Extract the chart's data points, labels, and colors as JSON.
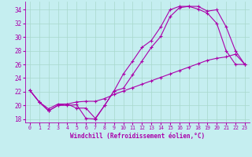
{
  "xlabel": "Windchill (Refroidissement éolien,°C)",
  "line_color": "#aa00aa",
  "bg_color": "#c5eef0",
  "grid_color": "#a8d8cc",
  "xlim_min": -0.5,
  "xlim_max": 23.5,
  "ylim_min": 17.5,
  "ylim_max": 35.2,
  "xticks": [
    0,
    1,
    2,
    3,
    4,
    5,
    6,
    7,
    8,
    9,
    10,
    11,
    12,
    13,
    14,
    15,
    16,
    17,
    18,
    19,
    20,
    21,
    22,
    23
  ],
  "yticks": [
    18,
    20,
    22,
    24,
    26,
    28,
    30,
    32,
    34
  ],
  "line1_x": [
    0,
    1,
    2,
    3,
    4,
    5,
    6,
    7,
    8,
    9,
    10,
    11,
    12,
    13,
    14,
    15,
    16,
    17,
    18,
    19,
    20,
    21,
    22,
    23
  ],
  "line1_y": [
    22.2,
    20.5,
    19.2,
    20.0,
    20.0,
    20.1,
    18.1,
    18.0,
    20.0,
    22.1,
    22.5,
    24.5,
    26.5,
    28.5,
    30.1,
    33.0,
    34.3,
    34.5,
    34.5,
    33.8,
    34.0,
    31.5,
    28.0,
    26.0
  ],
  "line2_x": [
    0,
    1,
    2,
    3,
    4,
    5,
    6,
    7,
    8,
    9,
    10,
    11,
    12,
    13,
    14,
    15,
    16,
    17,
    18,
    19,
    20,
    21,
    22,
    23
  ],
  "line2_y": [
    22.2,
    20.5,
    19.2,
    20.0,
    20.2,
    19.6,
    19.6,
    18.1,
    20.0,
    22.1,
    24.6,
    26.5,
    28.5,
    29.5,
    31.5,
    34.0,
    34.5,
    34.5,
    34.1,
    33.5,
    32.0,
    28.0,
    26.0,
    26.0
  ],
  "line3_x": [
    0,
    1,
    2,
    3,
    4,
    5,
    6,
    7,
    8,
    9,
    10,
    11,
    12,
    13,
    14,
    15,
    16,
    17,
    18,
    19,
    20,
    21,
    22,
    23
  ],
  "line3_y": [
    22.2,
    20.5,
    19.5,
    20.2,
    20.2,
    20.5,
    20.6,
    20.6,
    21.0,
    21.6,
    22.1,
    22.6,
    23.1,
    23.6,
    24.1,
    24.6,
    25.1,
    25.6,
    26.1,
    26.6,
    26.9,
    27.1,
    27.5,
    26.0
  ],
  "xlabel_fontsize": 5.5,
  "xtick_fontsize": 4.8,
  "ytick_fontsize": 5.5,
  "linewidth": 0.8,
  "markersize": 2.8
}
